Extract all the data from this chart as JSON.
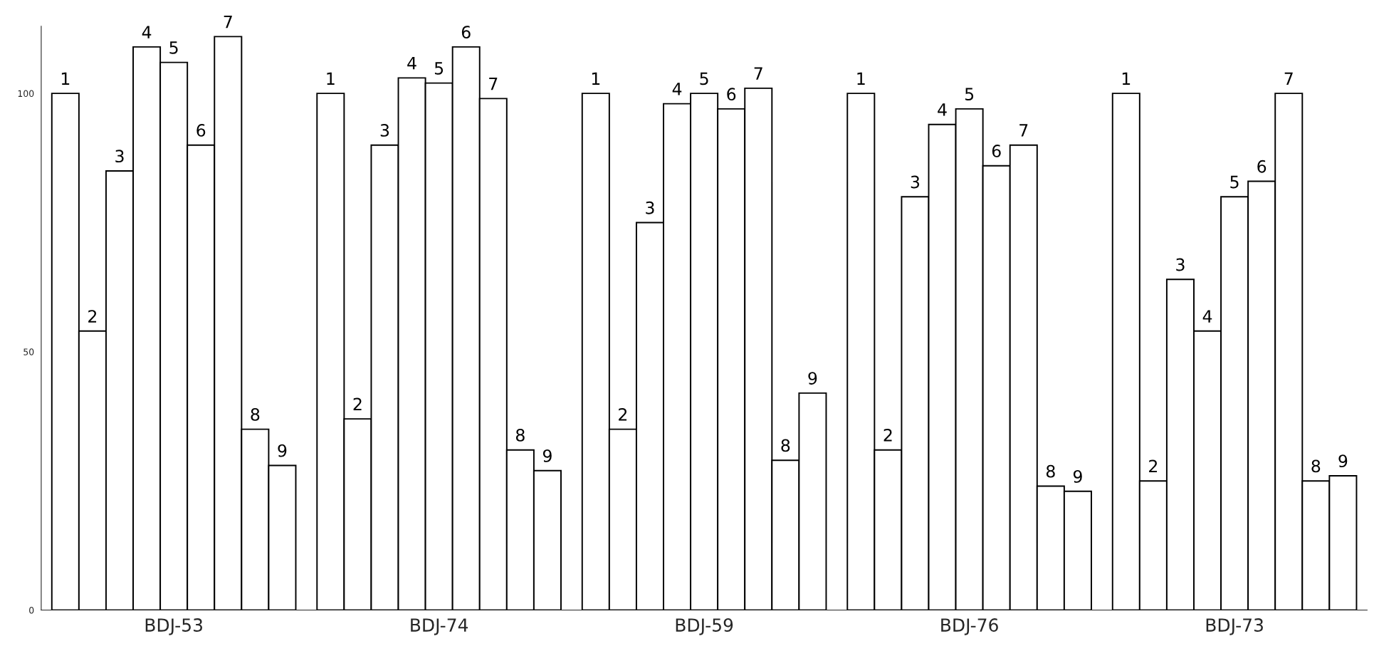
{
  "chart_data": {
    "type": "bar",
    "categories": [
      "BDJ-53",
      "BDJ-74",
      "BDJ-59",
      "BDJ-76",
      "BDJ-73"
    ],
    "series": [
      {
        "name": "1",
        "color": "#000000",
        "values": [
          100,
          100,
          100,
          100,
          100
        ]
      },
      {
        "name": "2",
        "color": "#000000",
        "values": [
          54,
          37,
          35,
          31,
          25
        ]
      },
      {
        "name": "3",
        "color": "#000000",
        "values": [
          85,
          90,
          75,
          80,
          64
        ]
      },
      {
        "name": "4",
        "color": "#000000",
        "values": [
          109,
          103,
          98,
          94,
          54
        ]
      },
      {
        "name": "5",
        "color": "#000000",
        "values": [
          106,
          102,
          100,
          97,
          80
        ]
      },
      {
        "name": "6",
        "color": "#000000",
        "values": [
          90,
          109,
          97,
          86,
          83
        ]
      },
      {
        "name": "7",
        "color": "#000000",
        "values": [
          111,
          99,
          101,
          90,
          100
        ]
      },
      {
        "name": "8",
        "color": "#000000",
        "values": [
          35,
          31,
          29,
          24,
          25
        ]
      },
      {
        "name": "9",
        "color": "#000000",
        "values": [
          28,
          27,
          42,
          23,
          26
        ]
      }
    ],
    "ylim": [
      0,
      113
    ],
    "yticks": [
      0,
      50,
      100
    ],
    "grid": false,
    "legend": false
  }
}
